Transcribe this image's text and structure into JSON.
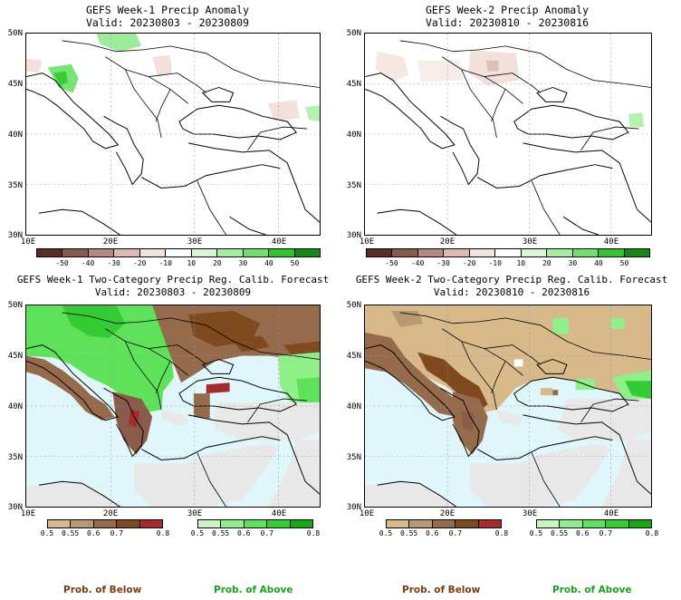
{
  "panels": {
    "tl": {
      "title1": "GEFS Week-1 Precip Anomaly",
      "title2": "Valid: 20230803 - 20230809"
    },
    "tr": {
      "title1": "GEFS Week-2 Precip Anomaly",
      "title2": "Valid: 20230810 - 20230816"
    },
    "bl": {
      "title1": "GEFS Week-1 Two-Category Precip Reg. Calib. Forecast",
      "title2": "Valid: 20230803 - 20230809"
    },
    "br": {
      "title1": "GEFS Week-2 Two-Category Precip Reg. Calib. Forecast",
      "title2": "Valid: 20230810 - 20230816"
    }
  },
  "lat_labels": [
    "50N",
    "45N",
    "40N",
    "35N",
    "30N"
  ],
  "lon_labels": [
    "10E",
    "20E",
    "30E",
    "40E"
  ],
  "anomaly_colorbar": {
    "labels": [
      "-50",
      "-40",
      "-30",
      "-20",
      "-10",
      "10",
      "20",
      "30",
      "40",
      "50"
    ],
    "colors": [
      "#5a2e25",
      "#8a5a4a",
      "#b48a80",
      "#dcbab0",
      "#f3e3dc",
      "#ffffff",
      "#d6f7d2",
      "#a4eea0",
      "#6fe06a",
      "#2fc52c",
      "#118a12"
    ]
  },
  "below_colorbar": {
    "labels": [
      "0.5",
      "0.55",
      "0.6",
      "0.7",
      "0.8"
    ],
    "colors": [
      "#d7b98a",
      "#b79a70",
      "#956b4c",
      "#7f4a1e",
      "#a52a2a"
    ]
  },
  "above_colorbar": {
    "labels": [
      "0.5",
      "0.55",
      "0.6",
      "0.7",
      "0.8"
    ],
    "colors": [
      "#c8f7c0",
      "#8ff08a",
      "#5ee25a",
      "#33cc33",
      "#14a814"
    ]
  },
  "legend": {
    "below": "Prob. of Below",
    "above": "Prob. of Above"
  },
  "colors": {
    "below_label": "#7a3b12",
    "above_label": "#1aa11a",
    "sea": "#dff6fa",
    "noskill": "#e8e8e8"
  }
}
